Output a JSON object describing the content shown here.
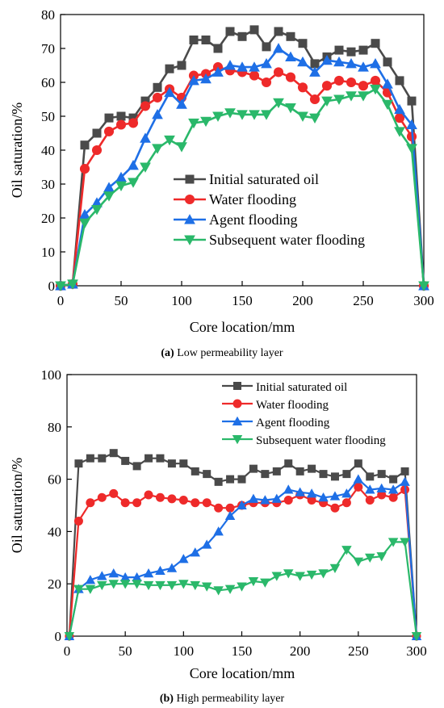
{
  "colors": {
    "initial": "#4a4a4a",
    "water": "#ee2a2a",
    "agent": "#1e6fe6",
    "subsequent": "#2ab86a"
  },
  "chart_data": [
    {
      "type": "line",
      "caption_prefix": "(a)",
      "caption_text": " Low permeability layer",
      "xlabel": "Core location/mm",
      "ylabel": "Oil saturation/%",
      "xlim": [
        0,
        300
      ],
      "ylim": [
        0,
        80
      ],
      "xticks": [
        0,
        50,
        100,
        150,
        200,
        250,
        300
      ],
      "yticks": [
        0,
        10,
        20,
        30,
        40,
        50,
        60,
        70,
        80
      ],
      "legend_position": "center",
      "series": [
        {
          "name": "Initial saturated oil",
          "marker": "square",
          "color_key": "initial",
          "x": [
            0,
            10,
            20,
            30,
            40,
            50,
            60,
            70,
            80,
            90,
            100,
            110,
            120,
            130,
            140,
            150,
            160,
            170,
            180,
            190,
            200,
            210,
            220,
            230,
            240,
            250,
            260,
            270,
            280,
            290,
            300
          ],
          "y": [
            0,
            0.5,
            41.5,
            45,
            49.5,
            50,
            49.5,
            54.5,
            58.5,
            64,
            65,
            72.5,
            72.5,
            70,
            75,
            73.5,
            75.5,
            70.5,
            75,
            73.5,
            71.5,
            65.5,
            67.5,
            69.5,
            69,
            69.5,
            71.5,
            66,
            60.5,
            54.5,
            0
          ]
        },
        {
          "name": "Water flooding",
          "marker": "circle",
          "color_key": "water",
          "x": [
            0,
            10,
            20,
            30,
            40,
            50,
            60,
            70,
            80,
            90,
            100,
            110,
            120,
            130,
            140,
            150,
            160,
            170,
            180,
            190,
            200,
            210,
            220,
            230,
            240,
            250,
            260,
            270,
            280,
            290,
            300
          ],
          "y": [
            0,
            0.5,
            34.5,
            40,
            45.5,
            47.5,
            48,
            53,
            55.5,
            58,
            55.5,
            62,
            62.5,
            64.5,
            63.5,
            63,
            62,
            60,
            63,
            61.5,
            58.5,
            55,
            59,
            60.5,
            60,
            59,
            60.5,
            57,
            49.5,
            44,
            0
          ]
        },
        {
          "name": "Agent flooding",
          "marker": "triangle-up",
          "color_key": "agent",
          "x": [
            0,
            10,
            20,
            30,
            40,
            50,
            60,
            70,
            80,
            90,
            100,
            110,
            120,
            130,
            140,
            150,
            160,
            170,
            180,
            190,
            200,
            210,
            220,
            230,
            240,
            250,
            260,
            270,
            280,
            290,
            300
          ],
          "y": [
            0,
            0.5,
            21,
            24.5,
            29,
            32,
            35.5,
            43.5,
            50.5,
            57,
            53.5,
            60.5,
            61,
            63,
            65,
            64.5,
            64.5,
            65.5,
            70,
            67.5,
            66,
            63,
            66.5,
            66,
            65.5,
            64.5,
            65.5,
            59.5,
            52,
            47.5,
            0
          ]
        },
        {
          "name": "Subsequent water flooding",
          "marker": "triangle-down",
          "color_key": "subsequent",
          "x": [
            0,
            10,
            20,
            30,
            40,
            50,
            60,
            70,
            80,
            90,
            100,
            110,
            120,
            130,
            140,
            150,
            160,
            170,
            180,
            190,
            200,
            210,
            220,
            230,
            240,
            250,
            260,
            270,
            280,
            290,
            300
          ],
          "y": [
            0,
            0.5,
            18.5,
            22.5,
            26.5,
            29.5,
            30.5,
            35,
            40.5,
            43,
            41,
            48,
            48.5,
            50,
            51,
            50.5,
            50.5,
            50.5,
            54,
            52.5,
            50,
            49.5,
            54.5,
            55,
            56,
            56,
            58,
            53.5,
            45.5,
            40.5,
            0
          ]
        }
      ]
    },
    {
      "type": "line",
      "caption_prefix": "(b)",
      "caption_text": " High permeability layer",
      "xlabel": "Core location/mm",
      "ylabel": "Oil saturation/%",
      "xlim": [
        0,
        300
      ],
      "ylim": [
        0,
        100
      ],
      "xticks": [
        0,
        50,
        100,
        150,
        200,
        250,
        300
      ],
      "yticks": [
        0,
        20,
        40,
        60,
        80,
        100
      ],
      "legend_position": "top-right",
      "series": [
        {
          "name": "Initial saturated oil",
          "marker": "square",
          "color_key": "initial",
          "x": [
            2,
            10,
            20,
            30,
            40,
            50,
            60,
            70,
            80,
            90,
            100,
            110,
            120,
            130,
            140,
            150,
            160,
            170,
            180,
            190,
            200,
            210,
            220,
            230,
            240,
            250,
            260,
            270,
            280,
            290,
            300
          ],
          "y": [
            0,
            66,
            68,
            68,
            70,
            67,
            65,
            68,
            68,
            66,
            66,
            63,
            62,
            59,
            60,
            60,
            64,
            62,
            63,
            66,
            63,
            64,
            62,
            61,
            62,
            66,
            61,
            62,
            60,
            63,
            0
          ]
        },
        {
          "name": "Water flooding",
          "marker": "circle",
          "color_key": "water",
          "x": [
            2,
            10,
            20,
            30,
            40,
            50,
            60,
            70,
            80,
            90,
            100,
            110,
            120,
            130,
            140,
            150,
            160,
            170,
            180,
            190,
            200,
            210,
            220,
            230,
            240,
            250,
            260,
            270,
            280,
            290,
            300
          ],
          "y": [
            0,
            44,
            51,
            53,
            54.5,
            51,
            51,
            54,
            53,
            52.5,
            52,
            51,
            51,
            49,
            49,
            50,
            51,
            51,
            51,
            52,
            54,
            52,
            51,
            49,
            51,
            57,
            52,
            54,
            53,
            56,
            0
          ]
        },
        {
          "name": "Agent flooding",
          "marker": "triangle-up",
          "color_key": "agent",
          "x": [
            2,
            10,
            20,
            30,
            40,
            50,
            60,
            70,
            80,
            90,
            100,
            110,
            120,
            130,
            140,
            150,
            160,
            170,
            180,
            190,
            200,
            210,
            220,
            230,
            240,
            250,
            260,
            270,
            280,
            290,
            300
          ],
          "y": [
            0,
            18,
            21.5,
            23,
            24,
            22.5,
            22.5,
            24,
            25,
            26,
            29.5,
            32,
            35,
            40,
            46,
            50,
            52.5,
            52,
            52.5,
            56,
            55,
            54.5,
            53,
            53.5,
            54.5,
            60,
            56,
            56.5,
            56,
            59,
            0
          ]
        },
        {
          "name": "Subsequent water flooding",
          "marker": "triangle-down",
          "color_key": "subsequent",
          "x": [
            2,
            10,
            20,
            30,
            40,
            50,
            60,
            70,
            80,
            90,
            100,
            110,
            120,
            130,
            140,
            150,
            160,
            170,
            180,
            190,
            200,
            210,
            220,
            230,
            240,
            250,
            260,
            270,
            280,
            290,
            300
          ],
          "y": [
            0,
            18,
            18,
            19.5,
            20,
            20,
            20,
            19.5,
            19.5,
            19.5,
            20,
            19.5,
            19,
            17.5,
            18,
            19,
            21,
            20.5,
            23,
            24,
            23,
            23.5,
            24,
            26,
            33,
            28.5,
            30,
            30.5,
            36,
            36,
            0
          ]
        }
      ]
    }
  ]
}
